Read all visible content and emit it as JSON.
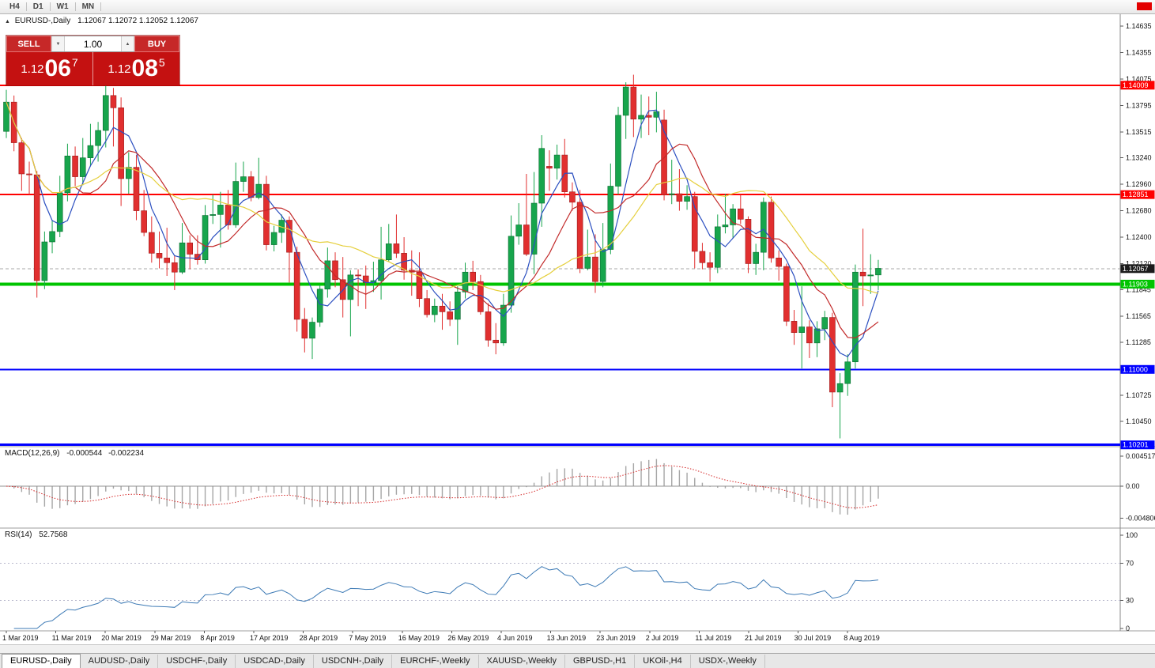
{
  "toolbar": {
    "timeframes": [
      "H4",
      "D1",
      "W1",
      "MN"
    ]
  },
  "icons": {
    "collapse": "▲",
    "spin_down": "▼",
    "spin_up": "▲"
  },
  "chart": {
    "symbol_title": "EURUSD-,Daily",
    "ohlc": "1.12067 1.12072 1.12052 1.12067",
    "current_price": 1.12067,
    "current_price_label": "1.12067"
  },
  "trade_panel": {
    "sell_label": "SELL",
    "buy_label": "BUY",
    "volume": "1.00",
    "sell_price": {
      "prefix": "1.12",
      "big": "06",
      "pip": "7"
    },
    "buy_price": {
      "prefix": "1.12",
      "big": "08",
      "pip": "5"
    }
  },
  "levels": [
    {
      "label": "1.14009",
      "price": 1.14009,
      "color": "#ff0000",
      "width": 2
    },
    {
      "label": "1.12851",
      "price": 1.12851,
      "color": "#ff0000",
      "width": 2
    },
    {
      "label": "1.11903",
      "price": 1.11903,
      "color": "#00c400",
      "width": 4
    },
    {
      "label": "1.11000",
      "price": 1.11,
      "color": "#0000ff",
      "width": 2
    },
    {
      "label": "1.10201",
      "price": 1.10201,
      "color": "#0000ff",
      "width": 3
    }
  ],
  "price_axis": {
    "ticks": [
      "1.14635",
      "1.14355",
      "1.14075",
      "1.13795",
      "1.13515",
      "1.13240",
      "1.12960",
      "1.12680",
      "1.12400",
      "1.12120",
      "1.11845",
      "1.11565",
      "1.11285",
      "1.10725",
      "1.10450"
    ]
  },
  "macd": {
    "name": "MACD(12,26,9)",
    "value": "-0.000544",
    "signal": "-0.002234",
    "axis": [
      "0.004517",
      "0.00",
      "-0.004806"
    ]
  },
  "rsi": {
    "name": "RSI(14)",
    "value": "52.7568",
    "axis": [
      "100",
      "70",
      "30",
      "0"
    ],
    "levels": [
      70,
      30
    ]
  },
  "date_axis": {
    "labels": [
      "1 Mar 2019",
      "11 Mar 2019",
      "20 Mar 2019",
      "29 Mar 2019",
      "8 Apr 2019",
      "17 Apr 2019",
      "28 Apr 2019",
      "7 May 2019",
      "16 May 2019",
      "26 May 2019",
      "4 Jun 2019",
      "13 Jun 2019",
      "23 Jun 2019",
      "2 Jul 2019",
      "11 Jul 2019",
      "21 Jul 2019",
      "30 Jul 2019",
      "8 Aug 2019"
    ]
  },
  "tabs": [
    {
      "label": "EURUSD-,Daily",
      "active": true
    },
    {
      "label": "AUDUSD-,Daily",
      "active": false
    },
    {
      "label": "USDCHF-,Daily",
      "active": false
    },
    {
      "label": "USDCAD-,Daily",
      "active": false
    },
    {
      "label": "USDCNH-,Daily",
      "active": false
    },
    {
      "label": "EURCHF-,Weekly",
      "active": false
    },
    {
      "label": "XAUUSD-,Weekly",
      "active": false
    },
    {
      "label": "GBPUSD-,H1",
      "active": false
    },
    {
      "label": "UKOil-,H4",
      "active": false
    },
    {
      "label": "USDX-,Weekly",
      "active": false
    }
  ],
  "colors": {
    "candle_up": "#17a54c",
    "candle_down": "#e12f2f",
    "candle_up_border": "#0b6b30",
    "candle_down_border": "#9c1c1c",
    "ma_fast": "#2b4fc0",
    "ma_mid": "#c22a2a",
    "ma_slow": "#e5cf3c",
    "macd_bar": "#a6a6a6",
    "macd_signal": "#d42525",
    "rsi_line": "#3d7ab5",
    "level_label_text": "#ffffff",
    "current_label_bg": "#1b1b1b",
    "separator": "#9e9e9e"
  },
  "chart_data": {
    "type": "candlestick",
    "symbol": "EURUSD",
    "timeframe": "Daily",
    "x_range": [
      "1 Mar 2019",
      "8 Aug 2019"
    ],
    "y_range": [
      1.096,
      1.147
    ],
    "mas": [
      {
        "period": 5,
        "color_key": "ma_fast"
      },
      {
        "period": 10,
        "color_key": "ma_mid"
      },
      {
        "period": 20,
        "color_key": "ma_slow"
      }
    ],
    "indicators": {
      "macd": {
        "fast": 12,
        "slow": 26,
        "signal": 9
      },
      "rsi": {
        "period": 14
      }
    },
    "candles": [
      [
        1.1352,
        1.1396,
        1.1345,
        1.1383
      ],
      [
        1.1383,
        1.139,
        1.1331,
        1.134
      ],
      [
        1.134,
        1.1345,
        1.1289,
        1.1307
      ],
      [
        1.1307,
        1.132,
        1.1285,
        1.1306
      ],
      [
        1.1306,
        1.131,
        1.1176,
        1.1194
      ],
      [
        1.1194,
        1.1246,
        1.1185,
        1.1235
      ],
      [
        1.1235,
        1.1258,
        1.1223,
        1.1246
      ],
      [
        1.1246,
        1.1305,
        1.124,
        1.1287
      ],
      [
        1.1287,
        1.1339,
        1.1278,
        1.1326
      ],
      [
        1.1326,
        1.1336,
        1.1294,
        1.1304
      ],
      [
        1.1304,
        1.1345,
        1.1295,
        1.1324
      ],
      [
        1.1324,
        1.136,
        1.1315,
        1.1337
      ],
      [
        1.1337,
        1.1362,
        1.132,
        1.1353
      ],
      [
        1.1353,
        1.1402,
        1.1335,
        1.139
      ],
      [
        1.139,
        1.1398,
        1.1336,
        1.1377
      ],
      [
        1.1377,
        1.1388,
        1.1273,
        1.1302
      ],
      [
        1.1302,
        1.133,
        1.1286,
        1.1314
      ],
      [
        1.1314,
        1.1327,
        1.1258,
        1.1268
      ],
      [
        1.1268,
        1.129,
        1.1241,
        1.1245
      ],
      [
        1.1245,
        1.1262,
        1.1213,
        1.1223
      ],
      [
        1.1223,
        1.1246,
        1.1207,
        1.1218
      ],
      [
        1.1218,
        1.125,
        1.1199,
        1.1213
      ],
      [
        1.1213,
        1.122,
        1.1184,
        1.1203
      ],
      [
        1.1203,
        1.1255,
        1.1201,
        1.1234
      ],
      [
        1.1234,
        1.1242,
        1.1206,
        1.1222
      ],
      [
        1.1222,
        1.1242,
        1.1211,
        1.1216
      ],
      [
        1.1216,
        1.1274,
        1.1212,
        1.1263
      ],
      [
        1.1263,
        1.1285,
        1.1254,
        1.1264
      ],
      [
        1.1264,
        1.1288,
        1.1229,
        1.1274
      ],
      [
        1.1274,
        1.129,
        1.1248,
        1.1253
      ],
      [
        1.1253,
        1.1319,
        1.125,
        1.1299
      ],
      [
        1.1299,
        1.132,
        1.1288,
        1.1304
      ],
      [
        1.1304,
        1.131,
        1.1278,
        1.1282
      ],
      [
        1.1282,
        1.1324,
        1.128,
        1.1296
      ],
      [
        1.1296,
        1.1305,
        1.1226,
        1.1232
      ],
      [
        1.1232,
        1.1252,
        1.1225,
        1.1245
      ],
      [
        1.1245,
        1.1264,
        1.1234,
        1.1258
      ],
      [
        1.1258,
        1.1262,
        1.1192,
        1.1224
      ],
      [
        1.1224,
        1.123,
        1.114,
        1.1153
      ],
      [
        1.1153,
        1.1165,
        1.1118,
        1.1133
      ],
      [
        1.1133,
        1.1155,
        1.1111,
        1.115
      ],
      [
        1.115,
        1.119,
        1.1145,
        1.1185
      ],
      [
        1.1185,
        1.1229,
        1.1176,
        1.1215
      ],
      [
        1.1215,
        1.1224,
        1.1187,
        1.1195
      ],
      [
        1.1195,
        1.1219,
        1.1155,
        1.1174
      ],
      [
        1.1174,
        1.1205,
        1.1135,
        1.12
      ],
      [
        1.12,
        1.1206,
        1.1167,
        1.1199
      ],
      [
        1.1199,
        1.121,
        1.1164,
        1.1192
      ],
      [
        1.1192,
        1.1214,
        1.1182,
        1.1194
      ],
      [
        1.1194,
        1.1251,
        1.1174,
        1.1216
      ],
      [
        1.1216,
        1.1254,
        1.1214,
        1.1233
      ],
      [
        1.1233,
        1.1264,
        1.1218,
        1.1223
      ],
      [
        1.1223,
        1.124,
        1.1195,
        1.1205
      ],
      [
        1.1205,
        1.1226,
        1.1178,
        1.1203
      ],
      [
        1.1203,
        1.1224,
        1.1166,
        1.1175
      ],
      [
        1.1175,
        1.1184,
        1.1155,
        1.1158
      ],
      [
        1.1158,
        1.1175,
        1.115,
        1.1167
      ],
      [
        1.1167,
        1.118,
        1.1142,
        1.1161
      ],
      [
        1.1161,
        1.1172,
        1.1146,
        1.1153
      ],
      [
        1.1153,
        1.1188,
        1.1126,
        1.1182
      ],
      [
        1.1182,
        1.1213,
        1.1175,
        1.1203
      ],
      [
        1.1203,
        1.1215,
        1.1184,
        1.1193
      ],
      [
        1.1193,
        1.12,
        1.1158,
        1.1161
      ],
      [
        1.1161,
        1.117,
        1.1124,
        1.1131
      ],
      [
        1.1131,
        1.1149,
        1.1116,
        1.1128
      ],
      [
        1.1128,
        1.118,
        1.1125,
        1.1168
      ],
      [
        1.1168,
        1.1263,
        1.116,
        1.1241
      ],
      [
        1.1241,
        1.1276,
        1.1232,
        1.1253
      ],
      [
        1.1253,
        1.1307,
        1.122,
        1.1222
      ],
      [
        1.1222,
        1.1309,
        1.1201,
        1.1276
      ],
      [
        1.1276,
        1.1348,
        1.1251,
        1.1334
      ],
      [
        1.1315,
        1.1332,
        1.1289,
        1.1313
      ],
      [
        1.1313,
        1.1338,
        1.1301,
        1.1327
      ],
      [
        1.1327,
        1.1344,
        1.1282,
        1.1288
      ],
      [
        1.1288,
        1.1298,
        1.1268,
        1.1277
      ],
      [
        1.1277,
        1.129,
        1.1202,
        1.1207
      ],
      [
        1.1207,
        1.1248,
        1.1205,
        1.1219
      ],
      [
        1.1219,
        1.1243,
        1.1181,
        1.1193
      ],
      [
        1.1193,
        1.1255,
        1.1187,
        1.1227
      ],
      [
        1.1227,
        1.1318,
        1.1222,
        1.1294
      ],
      [
        1.1294,
        1.1378,
        1.1285,
        1.1369
      ],
      [
        1.1369,
        1.1404,
        1.1344,
        1.1399
      ],
      [
        1.1399,
        1.1412,
        1.1346,
        1.1365
      ],
      [
        1.1365,
        1.1391,
        1.1345,
        1.1369
      ],
      [
        1.1369,
        1.1389,
        1.1348,
        1.1367
      ],
      [
        1.1367,
        1.1394,
        1.1351,
        1.1373
      ],
      [
        1.1364,
        1.1375,
        1.1279,
        1.1285
      ],
      [
        1.1285,
        1.1322,
        1.1275,
        1.1286
      ],
      [
        1.1286,
        1.1312,
        1.1268,
        1.1278
      ],
      [
        1.1278,
        1.1295,
        1.1269,
        1.1283
      ],
      [
        1.1283,
        1.1288,
        1.1207,
        1.1225
      ],
      [
        1.1225,
        1.1234,
        1.1206,
        1.1213
      ],
      [
        1.1213,
        1.1224,
        1.1193,
        1.1208
      ],
      [
        1.1208,
        1.1264,
        1.1202,
        1.1251
      ],
      [
        1.1251,
        1.1286,
        1.1244,
        1.1253
      ],
      [
        1.1253,
        1.1275,
        1.1239,
        1.127
      ],
      [
        1.127,
        1.1285,
        1.1254,
        1.1259
      ],
      [
        1.1259,
        1.1262,
        1.1202,
        1.1212
      ],
      [
        1.1212,
        1.1233,
        1.12,
        1.1224
      ],
      [
        1.1224,
        1.1282,
        1.1205,
        1.1277
      ],
      [
        1.1277,
        1.1283,
        1.1213,
        1.1218
      ],
      [
        1.1218,
        1.1226,
        1.1194,
        1.1209
      ],
      [
        1.1209,
        1.1212,
        1.1146,
        1.1151
      ],
      [
        1.1151,
        1.1163,
        1.1126,
        1.1139
      ],
      [
        1.1139,
        1.1188,
        1.1101,
        1.1145
      ],
      [
        1.1145,
        1.1152,
        1.1112,
        1.1128
      ],
      [
        1.1128,
        1.1151,
        1.1113,
        1.1143
      ],
      [
        1.1143,
        1.1162,
        1.1131,
        1.1155
      ],
      [
        1.1155,
        1.116,
        1.106,
        1.1076
      ],
      [
        1.1076,
        1.1096,
        1.1027,
        1.1085
      ],
      [
        1.1085,
        1.1116,
        1.1072,
        1.1108
      ],
      [
        1.1108,
        1.1211,
        1.1101,
        1.1203
      ],
      [
        1.1203,
        1.1249,
        1.1167,
        1.1199
      ],
      [
        1.1199,
        1.1222,
        1.118,
        1.12
      ],
      [
        1.12,
        1.1216,
        1.1184,
        1.1207
      ]
    ]
  }
}
